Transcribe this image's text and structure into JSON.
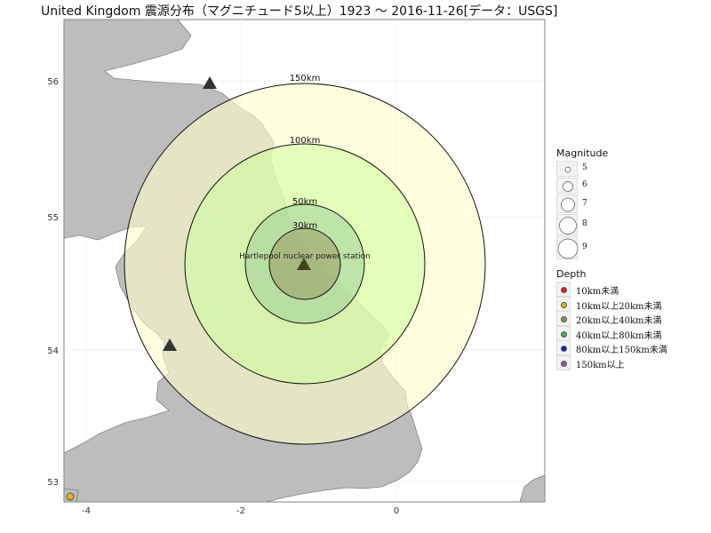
{
  "title": "United Kingdom 震源分布（マグニチュード5以上）1923 ～ 2016-11-26[データ：USGS]",
  "map": {
    "x_ticks": [
      "-4",
      "-2",
      "0"
    ],
    "y_ticks": [
      "56",
      "55",
      "54",
      "53"
    ],
    "station_label": "Hartlepool nuclear power station",
    "rings": [
      {
        "label": "150km",
        "fill": "#ffffcc"
      },
      {
        "label": "100km",
        "fill": "#ccff99"
      },
      {
        "label": "50km",
        "fill": "#99cc99"
      },
      {
        "label": "30km",
        "fill": "#999966"
      }
    ],
    "land_color": "#bdbdbd",
    "marker_symbol": "triangle"
  },
  "legend": {
    "magnitude_title": "Magnitude",
    "magnitude_items": [
      "5",
      "6",
      "7",
      "8",
      "9"
    ],
    "depth_title": "Depth",
    "depth_items": [
      {
        "label": "10km未満",
        "color": "#e41a1c"
      },
      {
        "label": "10km以上20km未満",
        "color": "#e6b022"
      },
      {
        "label": "20km以上40km未満",
        "color": "#9a8c4a"
      },
      {
        "label": "40km以上80km未満",
        "color": "#4daf4a"
      },
      {
        "label": "80km以上150km未満",
        "color": "#1f1fbf"
      },
      {
        "label": "150km以上",
        "color": "#984ea3"
      }
    ]
  },
  "events": [
    {
      "depth_class": "10km以上20km未満",
      "color": "#e6b022"
    }
  ]
}
